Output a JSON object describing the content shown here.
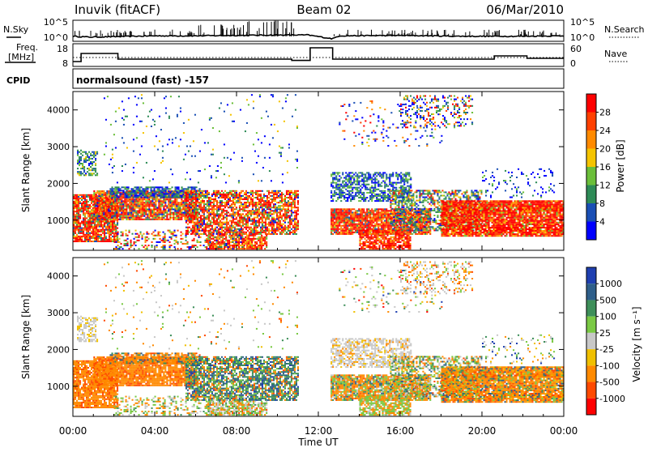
{
  "header": {
    "station": "Inuvik (fitACF)",
    "beam": "Beam 02",
    "date": "06/Mar/2010"
  },
  "labels": {
    "nsky": "N.Sky",
    "nsearch": "N.Search",
    "freq_line1": "Freq.",
    "freq_line2": "[MHz]",
    "nave": "Nave",
    "cpid": "CPID",
    "cpid_value": "normalsound (fast) -157",
    "slant_range": "Slant Range [km]",
    "time_ut": "Time UT"
  },
  "chart_data": [
    {
      "type": "line",
      "name": "noise-panel",
      "left_ticks": [
        "10^5",
        "10^0"
      ],
      "right_ticks": [
        "10^5",
        "10^0"
      ],
      "nsky_approx": [
        [
          0,
          1.2
        ],
        [
          0.8,
          1.0
        ],
        [
          2,
          1.1
        ],
        [
          4,
          1.3
        ],
        [
          6,
          1.3
        ],
        [
          8,
          1.4
        ],
        [
          10,
          1.5
        ],
        [
          11.5,
          1.5
        ],
        [
          12.7,
          0.6
        ],
        [
          13,
          1.3
        ],
        [
          16,
          1.4
        ],
        [
          19,
          1.2
        ],
        [
          22,
          1.2
        ],
        [
          24,
          1.3
        ]
      ]
    },
    {
      "type": "line",
      "name": "frequency-panel",
      "left_ticks": [
        "18",
        "8"
      ],
      "right_ticks": [
        "60",
        "0"
      ],
      "freq_mhz": [
        [
          0,
          9
        ],
        [
          0.4,
          14
        ],
        [
          2,
          14
        ],
        [
          2.2,
          10.5
        ],
        [
          10.5,
          10.5
        ],
        [
          10.7,
          9.7
        ],
        [
          11.3,
          9.7
        ],
        [
          11.6,
          17.5
        ],
        [
          12.5,
          17.5
        ],
        [
          12.7,
          10.5
        ],
        [
          20.4,
          10.5
        ],
        [
          20.6,
          12.5
        ],
        [
          22,
          12.5
        ],
        [
          22.2,
          11
        ],
        [
          24,
          11
        ]
      ],
      "nave_level": 11.5
    },
    {
      "type": "heatmap",
      "name": "power",
      "y_ticks": [
        "1000",
        "2000",
        "3000",
        "4000"
      ],
      "ylim_km": [
        180,
        4500
      ],
      "colorbar_label": "Power [dB]",
      "colorbar_ticks": [
        "4",
        "8",
        "12",
        "16",
        "20",
        "24",
        "28"
      ],
      "colors": [
        "#0000ff",
        "#1a4fb5",
        "#2e8b57",
        "#6bbf3a",
        "#f5c400",
        "#ff8a00",
        "#ff4000",
        "#ff0000"
      ]
    },
    {
      "type": "heatmap",
      "name": "velocity",
      "y_ticks": [
        "1000",
        "2000",
        "3000",
        "4000"
      ],
      "ylim_km": [
        180,
        4500
      ],
      "colorbar_label": "Velocity [m s⁻¹]",
      "colorbar_ticks": [
        "1000",
        "500",
        "100",
        "25",
        "-25",
        "-100",
        "-500",
        "-1000"
      ],
      "colors": [
        "#1f3fb0",
        "#2f5f8a",
        "#3e8f5a",
        "#7ac944",
        "#c8c8c8",
        "#f0c000",
        "#ff8a00",
        "#ff4a00",
        "#ff0000"
      ]
    }
  ],
  "x_axis": {
    "tick_labels": [
      "00:00",
      "04:00",
      "08:00",
      "12:00",
      "16:00",
      "20:00",
      "00:00"
    ],
    "tick_hours": [
      0,
      4,
      8,
      12,
      16,
      20,
      24
    ]
  }
}
